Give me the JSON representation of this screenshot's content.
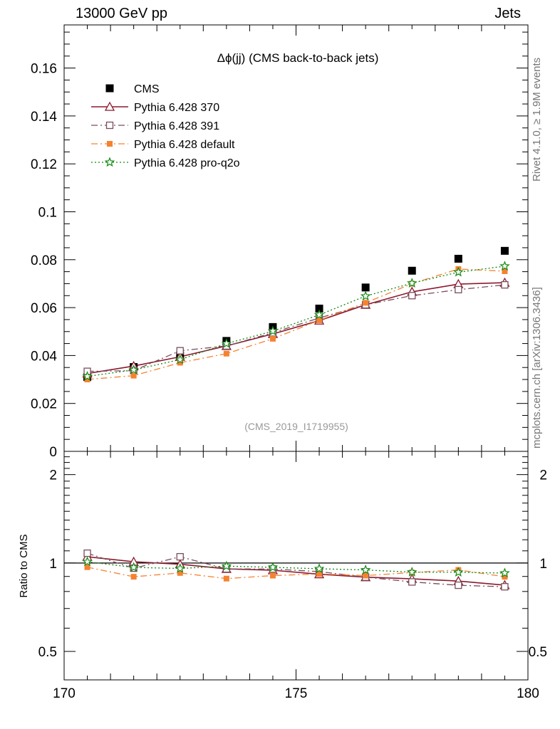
{
  "header": {
    "left_title": "13000 GeV pp",
    "right_title": "Jets"
  },
  "side_notes": {
    "rivet": "Rivet 4.1.0, ≥ 1.9M events",
    "mcplots": "mcplots.cern.ch [arXiv:1306.3436]"
  },
  "chart_data": [
    {
      "type": "scatter",
      "panel": "main",
      "title": "Δϕ(jj) (CMS back-to-back jets)",
      "watermark": "(CMS_2019_I1719955)",
      "xlabel": "",
      "ylabel": "",
      "xlim": [
        170,
        180
      ],
      "ylim": [
        0,
        0.178
      ],
      "x_ticks": [
        "170",
        "175",
        "180"
      ],
      "y_ticks": [
        "0",
        "0.02",
        "0.04",
        "0.06",
        "0.08",
        "0.1",
        "0.12",
        "0.14",
        "0.16"
      ],
      "legend_position": "top-left",
      "x": [
        170.5,
        171.5,
        172.5,
        173.5,
        174.5,
        175.5,
        176.5,
        177.5,
        178.5,
        179.5
      ],
      "series": [
        {
          "name": "CMS",
          "color": "#000000",
          "marker": "square-filled",
          "line": "none",
          "values": [
            0.031,
            0.0352,
            0.04,
            0.0461,
            0.0519,
            0.0596,
            0.0684,
            0.0754,
            0.0804,
            0.0837
          ]
        },
        {
          "name": "Pythia 6.428 370",
          "color": "#8b1a2e",
          "marker": "triangle-open",
          "line": "solid",
          "values": [
            0.0325,
            0.0356,
            0.0395,
            0.044,
            0.049,
            0.0546,
            0.0612,
            0.0666,
            0.0698,
            0.0704
          ]
        },
        {
          "name": "Pythia 6.428 391",
          "color": "#7a4e5c",
          "marker": "square-open",
          "line": "dashdot",
          "values": [
            0.0334,
            0.0337,
            0.042,
            0.044,
            0.0495,
            0.0557,
            0.0612,
            0.065,
            0.0675,
            0.0695
          ]
        },
        {
          "name": "Pythia 6.428 default",
          "color": "#f58231",
          "marker": "square-filled-small",
          "line": "dashdot",
          "values": [
            0.03,
            0.0316,
            0.037,
            0.0408,
            0.047,
            0.0547,
            0.062,
            0.07,
            0.0761,
            0.0752
          ]
        },
        {
          "name": "Pythia 6.428 pro-q2o",
          "color": "#138a13",
          "marker": "star-open",
          "line": "dotted",
          "values": [
            0.0313,
            0.034,
            0.0383,
            0.045,
            0.0502,
            0.057,
            0.0648,
            0.0702,
            0.0748,
            0.0773
          ]
        }
      ]
    },
    {
      "type": "line",
      "panel": "ratio",
      "ylabel": "Ratio to CMS",
      "ylim": [
        0.4,
        2.4
      ],
      "y_ticks": [
        "0.5",
        "1",
        "2"
      ],
      "reference_line": 1,
      "x": [
        170.5,
        171.5,
        172.5,
        173.5,
        174.5,
        175.5,
        176.5,
        177.5,
        178.5,
        179.5
      ],
      "series": [
        {
          "name": "Pythia 6.428 370",
          "values": [
            1.05,
            1.01,
            0.99,
            0.955,
            0.945,
            0.916,
            0.895,
            0.883,
            0.868,
            0.841
          ]
        },
        {
          "name": "Pythia 6.428 391",
          "values": [
            1.08,
            0.96,
            1.05,
            0.955,
            0.954,
            0.935,
            0.895,
            0.862,
            0.84,
            0.83
          ]
        },
        {
          "name": "Pythia 6.428 default",
          "values": [
            0.968,
            0.898,
            0.925,
            0.885,
            0.906,
            0.918,
            0.906,
            0.928,
            0.947,
            0.898
          ]
        },
        {
          "name": "Pythia 6.428 pro-q2o",
          "values": [
            1.01,
            0.966,
            0.958,
            0.976,
            0.967,
            0.956,
            0.947,
            0.931,
            0.93,
            0.924
          ]
        }
      ]
    }
  ]
}
